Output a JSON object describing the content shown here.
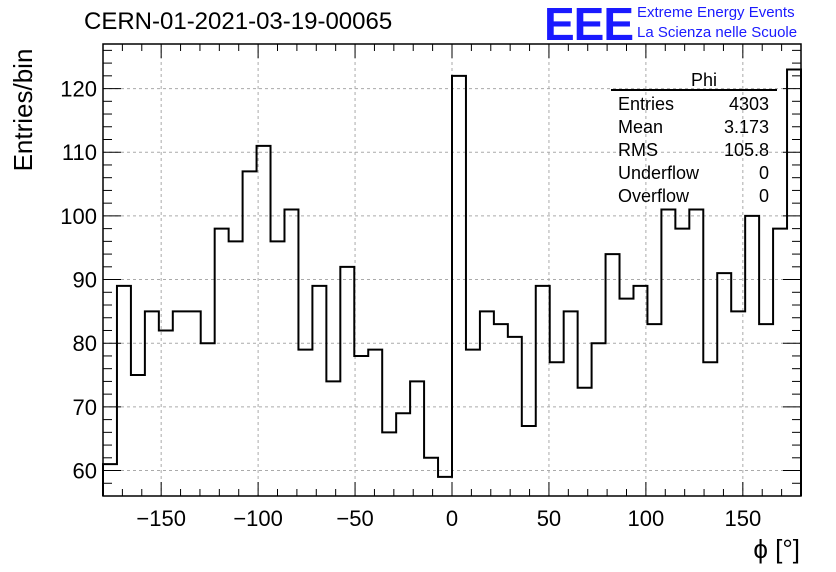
{
  "title": "CERN-01-2021-03-19-00065",
  "logo": {
    "mark": "EEE",
    "line1": "Extreme Energy Events",
    "line2": "La Scienza nelle Scuole"
  },
  "stats": {
    "name": "Phi",
    "rows": [
      {
        "label": "Entries",
        "value": "4303"
      },
      {
        "label": "Mean",
        "value": "3.173"
      },
      {
        "label": "RMS",
        "value": "105.8"
      },
      {
        "label": "Underflow",
        "value": "0"
      },
      {
        "label": "Overflow",
        "value": "0"
      }
    ]
  },
  "chart_data": {
    "type": "histogram",
    "title": "CERN-01-2021-03-19-00065",
    "xlabel": "ϕ [°]",
    "ylabel": "Entries/bin",
    "xlim": [
      -180,
      180
    ],
    "ylim": [
      56,
      127
    ],
    "bin_width": 7.2,
    "grid": true,
    "xticks": [
      -150,
      -100,
      -50,
      0,
      50,
      100,
      150
    ],
    "yticks": [
      60,
      70,
      80,
      90,
      100,
      110,
      120
    ],
    "values": [
      61,
      89,
      75,
      85,
      82,
      85,
      85,
      80,
      98,
      96,
      107,
      111,
      96,
      101,
      79,
      89,
      74,
      92,
      78,
      79,
      66,
      69,
      74,
      62,
      59,
      122,
      79,
      85,
      83,
      81,
      67,
      89,
      77,
      85,
      73,
      80,
      94,
      87,
      89,
      83,
      101,
      98,
      101,
      77,
      91,
      85,
      100,
      83,
      98,
      123
    ]
  }
}
